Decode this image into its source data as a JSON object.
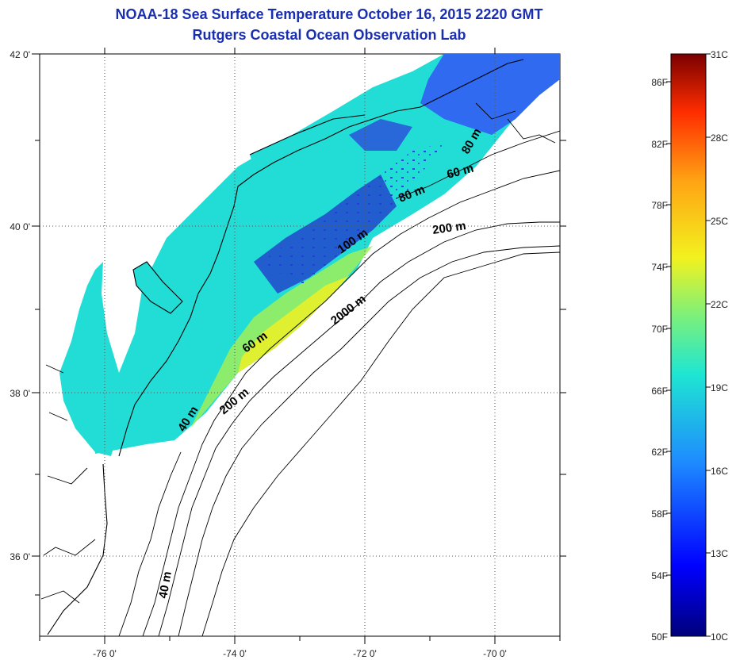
{
  "header": {
    "title": "NOAA-18 Sea Surface Temperature October 16, 2015 2220 GMT",
    "subtitle": "Rutgers Coastal Ocean Observation Lab"
  },
  "map": {
    "lon_ticks": [
      "-76 0'",
      "-74 0'",
      "-72 0'",
      "-70 0'"
    ],
    "lat_ticks": [
      "42 0'",
      "40 0'",
      "38 0'",
      "36 0'"
    ],
    "isobath_labels": [
      "40 m",
      "60 m",
      "80 m",
      "100 m",
      "200 m",
      "2000 m",
      "60 m",
      "80 m",
      "200 m",
      "60 m",
      "200 m",
      "40 m",
      "40 m"
    ],
    "colors": {
      "land_line": "#000000",
      "gridline": "#444444"
    }
  },
  "colorbar": {
    "fahrenheit_labels": [
      "86F",
      "82F",
      "78F",
      "74F",
      "70F",
      "66F",
      "62F",
      "58F",
      "54F",
      "50F"
    ],
    "celsius_labels": [
      "31C",
      "28C",
      "25C",
      "22C",
      "19C",
      "16C",
      "13C",
      "10C"
    ],
    "gradient_colors": [
      "#00007a",
      "#0000ff",
      "#1e8cff",
      "#1ee6d2",
      "#7cf07a",
      "#f2f21e",
      "#ffa514",
      "#ff2d00",
      "#7a0000"
    ]
  }
}
